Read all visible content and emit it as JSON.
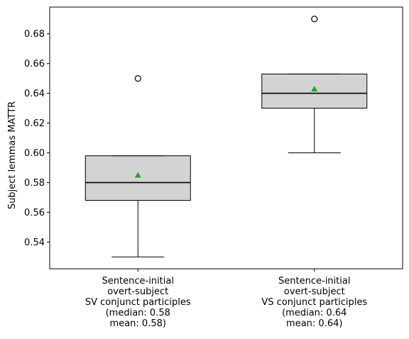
{
  "chart_data": {
    "type": "box",
    "title": "",
    "xlabel": "",
    "ylabel": "Subject lemmas MATTR",
    "ylim": [
      0.522,
      0.698
    ],
    "yticks": [
      0.54,
      0.56,
      0.58,
      0.6,
      0.62,
      0.64,
      0.66,
      0.68
    ],
    "ytick_labels": [
      "0.54",
      "0.56",
      "0.58",
      "0.60",
      "0.62",
      "0.64",
      "0.66",
      "0.68"
    ],
    "grid": false,
    "colors": {
      "box_fill": "#d3d3d3",
      "box_edge": "#000000",
      "median_line": "#000000",
      "mean_marker": "#2ca02c",
      "flier_edge": "#000000"
    },
    "categories": [
      {
        "label_lines": [
          "Sentence-initial",
          "overt-subject",
          "SV conjunct participles",
          "(median: 0.58",
          "mean: 0.58)"
        ],
        "whisker_low": 0.53,
        "q1": 0.568,
        "median": 0.58,
        "q3": 0.598,
        "whisker_high": 0.598,
        "mean": 0.585,
        "fliers": [
          0.65
        ]
      },
      {
        "label_lines": [
          "Sentence-initial",
          "overt-subject",
          "VS conjunct participles",
          "(median: 0.64",
          "mean: 0.64)"
        ],
        "whisker_low": 0.6,
        "q1": 0.63,
        "median": 0.64,
        "q3": 0.653,
        "whisker_high": 0.653,
        "mean": 0.643,
        "fliers": [
          0.69
        ]
      }
    ]
  }
}
